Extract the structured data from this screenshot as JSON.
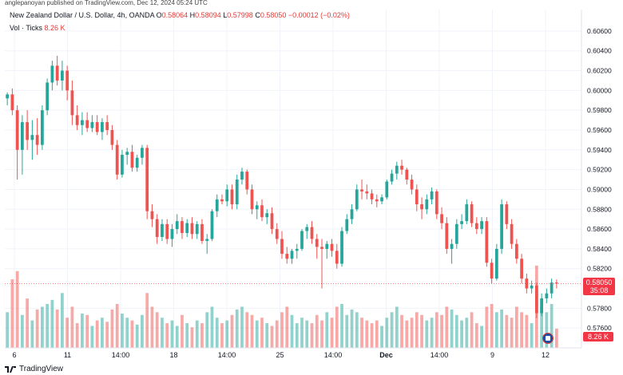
{
  "header": {
    "text": "anglepanoyan published on TradingView.com, Dec 12, 2024 05:24 UTC"
  },
  "legend": {
    "symbol": "New Zealand Dollar / U.S. Dollar, 4h, OANDA",
    "o_label": "O",
    "o": "0.58064",
    "h_label": "H",
    "h": "0.58094",
    "l_label": "L",
    "l": "0.57998",
    "c_label": "C",
    "c": "0.58050",
    "change": "−0.00012 (−0.02%)",
    "vol_label": "Vol · Ticks",
    "vol_value": "8.26 K"
  },
  "price_badge": {
    "price": "0.58050",
    "countdown": "35:08"
  },
  "vol_badge": "8.26 K",
  "footer": {
    "brand": "TradingView"
  },
  "colors": {
    "up": "#26a69a",
    "down": "#ef5350",
    "badge": "#f23645",
    "grid": "#f0f3fa",
    "axis": "#e0e3eb"
  },
  "chart_data": {
    "type": "candlestick",
    "symbol": "NZDUSD",
    "timeframe": "4h",
    "y_ticks": [
      "0.60600",
      "0.60400",
      "0.60200",
      "0.60000",
      "0.59800",
      "0.59600",
      "0.59400",
      "0.59200",
      "0.59000",
      "0.58800",
      "0.58600",
      "0.58400",
      "0.58200",
      "0.57800",
      "0.57600"
    ],
    "x_ticks": [
      "6",
      "11",
      "14:00",
      "18",
      "14:00",
      "25",
      "14:00",
      "Dec",
      "14:00",
      "9",
      "12"
    ],
    "last_price": 0.5805,
    "candles": [
      [
        0.5992,
        0.5998,
        0.5985,
        0.5996,
        26
      ],
      [
        0.5996,
        0.6002,
        0.5975,
        0.598,
        50
      ],
      [
        0.598,
        0.5985,
        0.591,
        0.594,
        56
      ],
      [
        0.594,
        0.5975,
        0.5915,
        0.5968,
        24
      ],
      [
        0.5968,
        0.598,
        0.594,
        0.595,
        36
      ],
      [
        0.595,
        0.597,
        0.593,
        0.5955,
        20
      ],
      [
        0.5955,
        0.5972,
        0.5935,
        0.5945,
        28
      ],
      [
        0.5945,
        0.5985,
        0.594,
        0.598,
        30
      ],
      [
        0.598,
        0.6012,
        0.5975,
        0.6008,
        32
      ],
      [
        0.6008,
        0.603,
        0.6,
        0.6025,
        35
      ],
      [
        0.6025,
        0.6035,
        0.6005,
        0.601,
        28
      ],
      [
        0.601,
        0.603,
        0.6,
        0.602,
        40
      ],
      [
        0.602,
        0.6025,
        0.599,
        0.6,
        22
      ],
      [
        0.6,
        0.601,
        0.5965,
        0.5975,
        30
      ],
      [
        0.5975,
        0.5985,
        0.596,
        0.5965,
        18
      ],
      [
        0.5965,
        0.5978,
        0.5955,
        0.597,
        25
      ],
      [
        0.597,
        0.5978,
        0.5958,
        0.5962,
        24
      ],
      [
        0.5962,
        0.5975,
        0.5958,
        0.5968,
        16
      ],
      [
        0.5968,
        0.5975,
        0.5955,
        0.5958,
        20
      ],
      [
        0.5958,
        0.5972,
        0.595,
        0.5968,
        22
      ],
      [
        0.5968,
        0.5975,
        0.5955,
        0.596,
        19
      ],
      [
        0.596,
        0.5965,
        0.594,
        0.5945,
        28
      ],
      [
        0.5945,
        0.595,
        0.591,
        0.5915,
        32
      ],
      [
        0.5915,
        0.594,
        0.5912,
        0.5935,
        25
      ],
      [
        0.5935,
        0.5942,
        0.5925,
        0.5938,
        22
      ],
      [
        0.5938,
        0.5945,
        0.5918,
        0.5922,
        20
      ],
      [
        0.5922,
        0.5935,
        0.5918,
        0.5932,
        17
      ],
      [
        0.5932,
        0.5945,
        0.5925,
        0.5942,
        24
      ],
      [
        0.5942,
        0.5945,
        0.587,
        0.5878,
        40
      ],
      [
        0.5878,
        0.5885,
        0.5862,
        0.587,
        30
      ],
      [
        0.587,
        0.5875,
        0.5845,
        0.5852,
        26
      ],
      [
        0.5852,
        0.587,
        0.5848,
        0.5865,
        22
      ],
      [
        0.5865,
        0.587,
        0.5845,
        0.585,
        18
      ],
      [
        0.585,
        0.5865,
        0.5842,
        0.586,
        20
      ],
      [
        0.586,
        0.5875,
        0.5855,
        0.5868,
        16
      ],
      [
        0.5868,
        0.5872,
        0.585,
        0.5856,
        24
      ],
      [
        0.5856,
        0.587,
        0.5852,
        0.5866,
        18
      ],
      [
        0.5866,
        0.5872,
        0.585,
        0.5855,
        15
      ],
      [
        0.5855,
        0.5868,
        0.585,
        0.5865,
        20
      ],
      [
        0.5865,
        0.587,
        0.5845,
        0.5848,
        18
      ],
      [
        0.5848,
        0.5855,
        0.5835,
        0.585,
        26
      ],
      [
        0.585,
        0.588,
        0.5848,
        0.5878,
        30
      ],
      [
        0.5878,
        0.5895,
        0.5872,
        0.589,
        22
      ],
      [
        0.589,
        0.5895,
        0.5885,
        0.5888,
        18
      ],
      [
        0.5888,
        0.5905,
        0.5883,
        0.59,
        20
      ],
      [
        0.59,
        0.5905,
        0.588,
        0.5885,
        24
      ],
      [
        0.5885,
        0.5915,
        0.588,
        0.591,
        28
      ],
      [
        0.591,
        0.5922,
        0.5905,
        0.5918,
        30
      ],
      [
        0.5918,
        0.592,
        0.5895,
        0.59,
        26
      ],
      [
        0.59,
        0.5905,
        0.5875,
        0.588,
        24
      ],
      [
        0.588,
        0.5888,
        0.587,
        0.5884,
        20
      ],
      [
        0.5884,
        0.589,
        0.5868,
        0.5872,
        22
      ],
      [
        0.5872,
        0.588,
        0.5865,
        0.5876,
        18
      ],
      [
        0.5876,
        0.5882,
        0.5855,
        0.586,
        16
      ],
      [
        0.586,
        0.5866,
        0.5845,
        0.585,
        20
      ],
      [
        0.585,
        0.5858,
        0.583,
        0.5835,
        26
      ],
      [
        0.5835,
        0.5842,
        0.5825,
        0.583,
        30
      ],
      [
        0.583,
        0.584,
        0.5825,
        0.5838,
        24
      ],
      [
        0.5838,
        0.5845,
        0.583,
        0.584,
        18
      ],
      [
        0.584,
        0.586,
        0.5838,
        0.5858,
        22
      ],
      [
        0.5858,
        0.5865,
        0.585,
        0.5862,
        20
      ],
      [
        0.5862,
        0.5868,
        0.5845,
        0.585,
        18
      ],
      [
        0.585,
        0.5855,
        0.583,
        0.5842,
        24
      ],
      [
        0.5842,
        0.585,
        0.58,
        0.584,
        20
      ],
      [
        0.584,
        0.5848,
        0.583,
        0.5845,
        26
      ],
      [
        0.5845,
        0.585,
        0.5832,
        0.5838,
        22
      ],
      [
        0.5838,
        0.5845,
        0.582,
        0.5825,
        30
      ],
      [
        0.5825,
        0.5862,
        0.5822,
        0.5858,
        32
      ],
      [
        0.5858,
        0.5875,
        0.5855,
        0.587,
        24
      ],
      [
        0.587,
        0.5885,
        0.5865,
        0.588,
        28
      ],
      [
        0.588,
        0.5905,
        0.5878,
        0.59,
        26
      ],
      [
        0.59,
        0.591,
        0.589,
        0.5898,
        22
      ],
      [
        0.5898,
        0.5905,
        0.589,
        0.5896,
        20
      ],
      [
        0.5896,
        0.59,
        0.5885,
        0.589,
        18
      ],
      [
        0.589,
        0.5895,
        0.5882,
        0.5888,
        20
      ],
      [
        0.5888,
        0.5895,
        0.5885,
        0.5892,
        16
      ],
      [
        0.5892,
        0.591,
        0.589,
        0.5908,
        22
      ],
      [
        0.5908,
        0.592,
        0.5905,
        0.5916,
        26
      ],
      [
        0.5916,
        0.5928,
        0.591,
        0.5924,
        30
      ],
      [
        0.5924,
        0.593,
        0.5915,
        0.592,
        24
      ],
      [
        0.592,
        0.5922,
        0.5905,
        0.591,
        20
      ],
      [
        0.591,
        0.5915,
        0.5895,
        0.59,
        22
      ],
      [
        0.59,
        0.5905,
        0.5878,
        0.5885,
        26
      ],
      [
        0.5885,
        0.5892,
        0.587,
        0.588,
        24
      ],
      [
        0.588,
        0.5895,
        0.5875,
        0.589,
        20
      ],
      [
        0.589,
        0.5902,
        0.5885,
        0.5898,
        22
      ],
      [
        0.5898,
        0.59,
        0.587,
        0.5875,
        26
      ],
      [
        0.5875,
        0.5882,
        0.586,
        0.5866,
        24
      ],
      [
        0.5866,
        0.5872,
        0.5835,
        0.584,
        30
      ],
      [
        0.584,
        0.585,
        0.5825,
        0.5845,
        28
      ],
      [
        0.5845,
        0.587,
        0.584,
        0.5865,
        24
      ],
      [
        0.5865,
        0.5875,
        0.586,
        0.5868,
        20
      ],
      [
        0.5868,
        0.589,
        0.5865,
        0.5885,
        22
      ],
      [
        0.5885,
        0.5888,
        0.5862,
        0.5866,
        26
      ],
      [
        0.5866,
        0.5872,
        0.5855,
        0.586,
        18
      ],
      [
        0.586,
        0.5872,
        0.5855,
        0.5868,
        16
      ],
      [
        0.5868,
        0.5872,
        0.5822,
        0.5826,
        30
      ],
      [
        0.5826,
        0.583,
        0.5805,
        0.581,
        32
      ],
      [
        0.581,
        0.5845,
        0.5808,
        0.584,
        26
      ],
      [
        0.584,
        0.589,
        0.5835,
        0.5885,
        28
      ],
      [
        0.5885,
        0.5888,
        0.586,
        0.5865,
        24
      ],
      [
        0.5865,
        0.587,
        0.584,
        0.5845,
        22
      ],
      [
        0.5845,
        0.585,
        0.5825,
        0.583,
        30
      ],
      [
        0.583,
        0.5835,
        0.5805,
        0.581,
        26
      ],
      [
        0.581,
        0.5815,
        0.5795,
        0.58,
        24
      ],
      [
        0.58,
        0.5808,
        0.5795,
        0.5803,
        18
      ],
      [
        0.5803,
        0.5806,
        0.577,
        0.5775,
        60
      ],
      [
        0.5775,
        0.5795,
        0.5772,
        0.579,
        30
      ],
      [
        0.579,
        0.58,
        0.5785,
        0.5795,
        26
      ],
      [
        0.5795,
        0.581,
        0.579,
        0.5806,
        32
      ],
      [
        0.5806,
        0.5809,
        0.58,
        0.5805,
        14
      ]
    ]
  }
}
